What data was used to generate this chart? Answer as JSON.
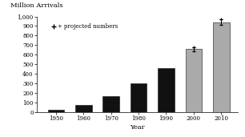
{
  "years": [
    1950,
    1960,
    1970,
    1980,
    1990,
    2000,
    2010
  ],
  "values": [
    25,
    80,
    165,
    300,
    460,
    660,
    940
  ],
  "colors": [
    "#111111",
    "#111111",
    "#111111",
    "#111111",
    "#111111",
    "#aaaaaa",
    "#aaaaaa"
  ],
  "projected_years": [
    2000,
    2010
  ],
  "title": "Million Arrivals",
  "xlabel": "Year",
  "ylim": [
    0,
    1000
  ],
  "yticks": [
    0,
    100,
    200,
    300,
    400,
    500,
    600,
    700,
    800,
    900,
    1000
  ],
  "ytick_labels": [
    "0",
    "100",
    "200",
    "300",
    "400",
    "500",
    "600",
    "700",
    "800",
    "900",
    "1,000"
  ],
  "legend_label": "+ projected numbers",
  "background_color": "#ffffff",
  "error_bar_color": "#111111",
  "error_values": [
    20,
    30
  ]
}
